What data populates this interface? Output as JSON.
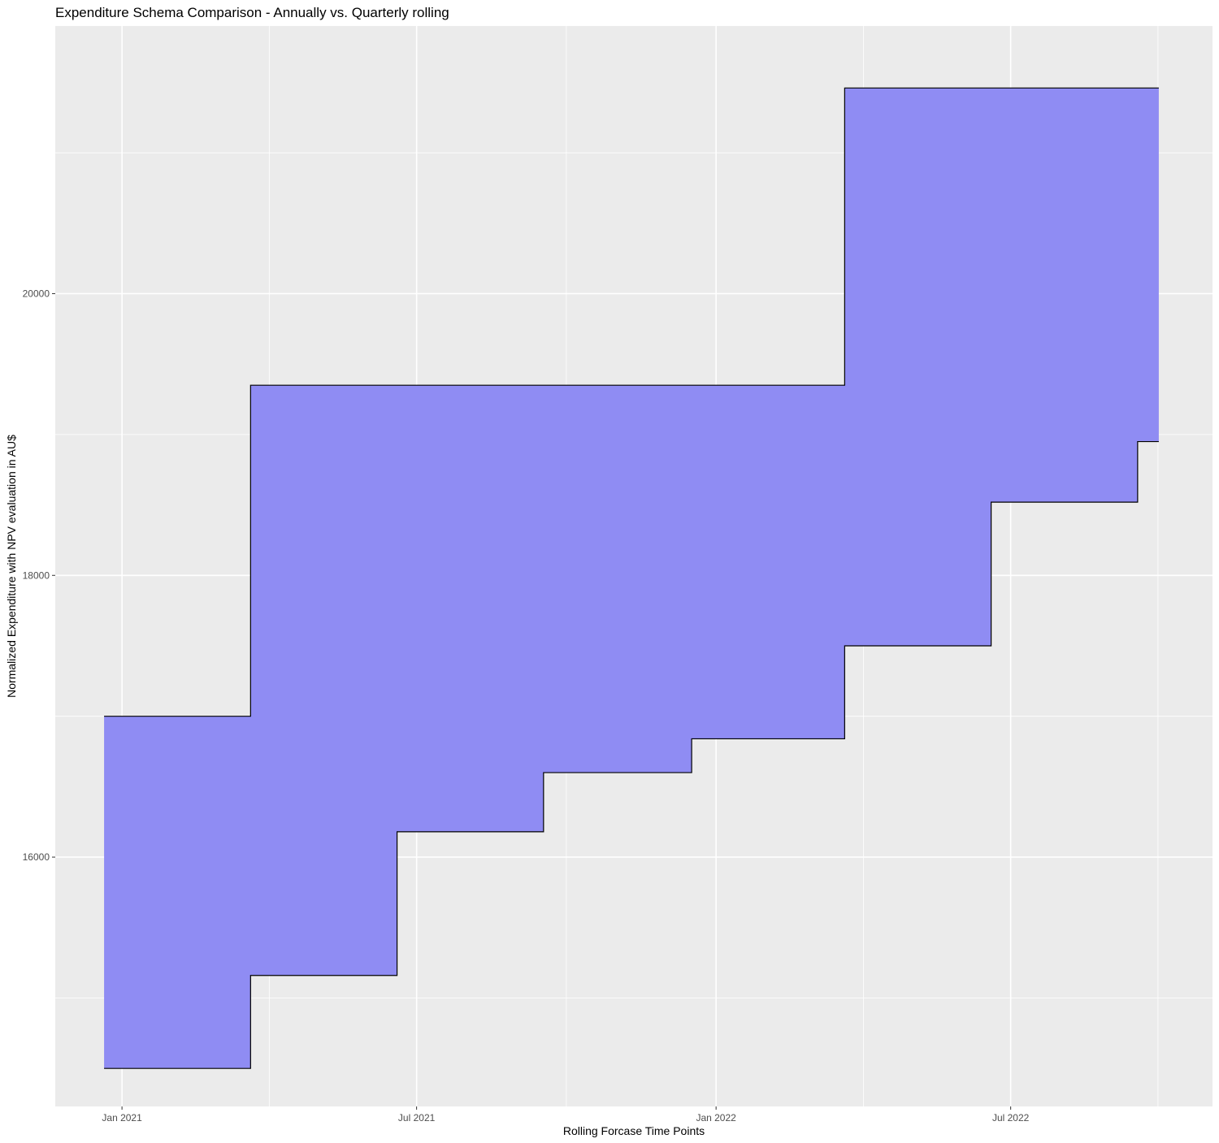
{
  "chart_data": {
    "type": "area",
    "title": "Expenditure Schema Comparison - Annually vs. Quarterly rolling",
    "xlabel": "Rolling Forcase Time Points",
    "ylabel": "Normalized Expenditure with NPV evaluation in AU$",
    "x_ticks": [
      {
        "date": "2021-01-01",
        "label": "Jan 2021"
      },
      {
        "date": "2021-07-01",
        "label": "Jul 2021"
      },
      {
        "date": "2022-01-01",
        "label": "Jan 2022"
      },
      {
        "date": "2022-07-01",
        "label": "Jul 2022"
      }
    ],
    "y_ticks": [
      16000,
      18000,
      20000
    ],
    "xlim": [
      "2020-11-21",
      "2022-11-02"
    ],
    "ylim": [
      14230,
      21900
    ],
    "fill_color": "#8f8cf3",
    "outline_color": "#000000",
    "panel_background": "#ebebeb",
    "grid": true,
    "legend": "none",
    "series": [
      {
        "role": "upper",
        "points": [
          {
            "x": "2020-12-21",
            "y": 17000
          },
          {
            "x": "2021-03-21",
            "y": 17000
          },
          {
            "x": "2021-03-21",
            "y": 19350
          },
          {
            "x": "2022-03-21",
            "y": 19350
          },
          {
            "x": "2022-03-21",
            "y": 21460
          },
          {
            "x": "2022-09-30",
            "y": 21460
          }
        ]
      },
      {
        "role": "lower",
        "points": [
          {
            "x": "2020-12-21",
            "y": 14500
          },
          {
            "x": "2021-03-21",
            "y": 14500
          },
          {
            "x": "2021-03-21",
            "y": 15160
          },
          {
            "x": "2021-06-19",
            "y": 15160
          },
          {
            "x": "2021-06-19",
            "y": 16180
          },
          {
            "x": "2021-09-17",
            "y": 16180
          },
          {
            "x": "2021-09-17",
            "y": 16600
          },
          {
            "x": "2021-12-17",
            "y": 16600
          },
          {
            "x": "2021-12-17",
            "y": 16840
          },
          {
            "x": "2022-03-21",
            "y": 16840
          },
          {
            "x": "2022-03-21",
            "y": 17500
          },
          {
            "x": "2022-06-19",
            "y": 17500
          },
          {
            "x": "2022-06-19",
            "y": 18520
          },
          {
            "x": "2022-09-17",
            "y": 18520
          },
          {
            "x": "2022-09-17",
            "y": 18950
          },
          {
            "x": "2022-09-30",
            "y": 18950
          }
        ]
      }
    ]
  }
}
